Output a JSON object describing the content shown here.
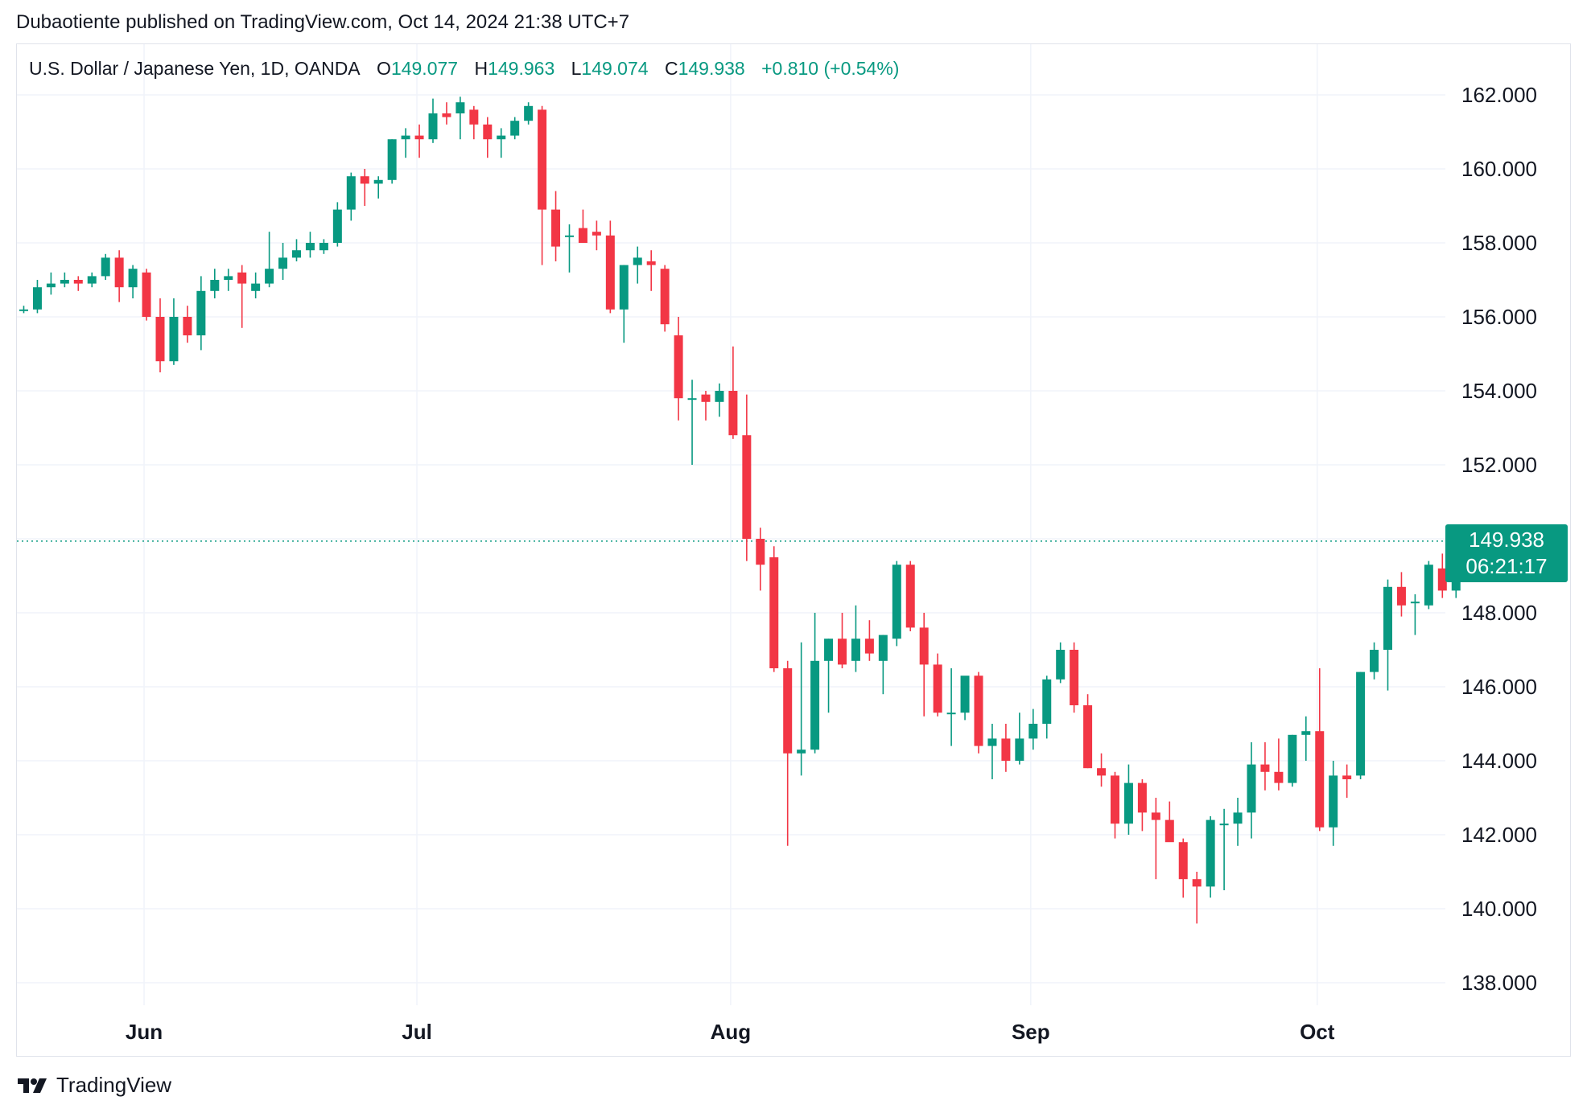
{
  "header": {
    "published": "Dubaotiente published on TradingView.com, Oct 14, 2024 21:38 UTC+7"
  },
  "legend": {
    "symbol": "U.S. Dollar / Japanese Yen, 1D, OANDA",
    "o_label": "O",
    "o_value": "149.077",
    "h_label": "H",
    "h_value": "149.963",
    "l_label": "L",
    "l_value": "149.074",
    "c_label": "C",
    "c_value": "149.938",
    "change": "+0.810 (+0.54%)"
  },
  "price_label": {
    "price": "149.938",
    "countdown": "06:21:17"
  },
  "footer": {
    "brand": "TradingView",
    "logo_icon": "tradingview-logo-icon"
  },
  "colors": {
    "up": "#089981",
    "down": "#f23645",
    "grid": "#f0f3fa",
    "text": "#131722"
  },
  "chart_data": {
    "type": "candlestick",
    "title": "U.S. Dollar / Japanese Yen, 1D, OANDA",
    "xlabel": "",
    "ylabel": "",
    "ylim": [
      137.0,
      163.5
    ],
    "y_ticks": [
      "138.000",
      "140.000",
      "142.000",
      "144.000",
      "146.000",
      "148.000",
      "150.000",
      "152.000",
      "154.000",
      "156.000",
      "158.000",
      "160.000",
      "162.000"
    ],
    "y_tick_values": [
      138,
      140,
      142,
      144,
      146,
      148,
      150,
      152,
      154,
      156,
      158,
      160,
      162
    ],
    "x_ticks": [
      {
        "label": "Jun",
        "index": 9
      },
      {
        "label": "Jul",
        "index": 29
      },
      {
        "label": "Aug",
        "index": 52
      },
      {
        "label": "Sep",
        "index": 74
      },
      {
        "label": "Oct",
        "index": 95
      }
    ],
    "last_price": 149.938,
    "grid": true,
    "candles": [
      {
        "o": 156.2,
        "h": 156.3,
        "l": 156.1,
        "c": 156.2
      },
      {
        "o": 156.2,
        "h": 157.0,
        "l": 156.1,
        "c": 156.8
      },
      {
        "o": 156.8,
        "h": 157.2,
        "l": 156.6,
        "c": 156.9
      },
      {
        "o": 156.9,
        "h": 157.2,
        "l": 156.8,
        "c": 157.0
      },
      {
        "o": 157.0,
        "h": 157.1,
        "l": 156.7,
        "c": 156.9
      },
      {
        "o": 156.9,
        "h": 157.2,
        "l": 156.8,
        "c": 157.1
      },
      {
        "o": 157.1,
        "h": 157.7,
        "l": 157.0,
        "c": 157.6
      },
      {
        "o": 157.6,
        "h": 157.8,
        "l": 156.4,
        "c": 156.8
      },
      {
        "o": 156.8,
        "h": 157.4,
        "l": 156.5,
        "c": 157.3
      },
      {
        "o": 157.2,
        "h": 157.3,
        "l": 155.9,
        "c": 156.0
      },
      {
        "o": 156.0,
        "h": 156.5,
        "l": 154.5,
        "c": 154.8
      },
      {
        "o": 154.8,
        "h": 156.5,
        "l": 154.7,
        "c": 156.0
      },
      {
        "o": 156.0,
        "h": 156.3,
        "l": 155.3,
        "c": 155.5
      },
      {
        "o": 155.5,
        "h": 157.1,
        "l": 155.1,
        "c": 156.7
      },
      {
        "o": 156.7,
        "h": 157.3,
        "l": 156.5,
        "c": 157.0
      },
      {
        "o": 157.0,
        "h": 157.3,
        "l": 156.7,
        "c": 157.1
      },
      {
        "o": 157.2,
        "h": 157.4,
        "l": 155.7,
        "c": 156.9
      },
      {
        "o": 156.7,
        "h": 157.2,
        "l": 156.5,
        "c": 156.9
      },
      {
        "o": 156.9,
        "h": 158.3,
        "l": 156.8,
        "c": 157.3
      },
      {
        "o": 157.3,
        "h": 158.0,
        "l": 157.0,
        "c": 157.6
      },
      {
        "o": 157.6,
        "h": 158.1,
        "l": 157.5,
        "c": 157.8
      },
      {
        "o": 157.8,
        "h": 158.3,
        "l": 157.6,
        "c": 158.0
      },
      {
        "o": 157.8,
        "h": 158.1,
        "l": 157.7,
        "c": 158.0
      },
      {
        "o": 158.0,
        "h": 159.1,
        "l": 157.9,
        "c": 158.9
      },
      {
        "o": 158.9,
        "h": 159.9,
        "l": 158.6,
        "c": 159.8
      },
      {
        "o": 159.8,
        "h": 160.0,
        "l": 159.0,
        "c": 159.6
      },
      {
        "o": 159.6,
        "h": 159.8,
        "l": 159.2,
        "c": 159.7
      },
      {
        "o": 159.7,
        "h": 160.8,
        "l": 159.6,
        "c": 160.8
      },
      {
        "o": 160.8,
        "h": 161.1,
        "l": 160.3,
        "c": 160.9
      },
      {
        "o": 160.9,
        "h": 161.2,
        "l": 160.3,
        "c": 160.8
      },
      {
        "o": 160.8,
        "h": 161.9,
        "l": 160.7,
        "c": 161.5
      },
      {
        "o": 161.5,
        "h": 161.8,
        "l": 161.2,
        "c": 161.4
      },
      {
        "o": 161.5,
        "h": 161.95,
        "l": 160.8,
        "c": 161.8
      },
      {
        "o": 161.6,
        "h": 161.7,
        "l": 160.8,
        "c": 161.2
      },
      {
        "o": 161.2,
        "h": 161.4,
        "l": 160.3,
        "c": 160.8
      },
      {
        "o": 160.8,
        "h": 161.1,
        "l": 160.3,
        "c": 160.9
      },
      {
        "o": 160.9,
        "h": 161.4,
        "l": 160.8,
        "c": 161.3
      },
      {
        "o": 161.3,
        "h": 161.8,
        "l": 161.2,
        "c": 161.7
      },
      {
        "o": 161.6,
        "h": 161.7,
        "l": 157.4,
        "c": 158.9
      },
      {
        "o": 158.9,
        "h": 159.4,
        "l": 157.5,
        "c": 157.9
      },
      {
        "o": 158.2,
        "h": 158.5,
        "l": 157.2,
        "c": 158.2
      },
      {
        "o": 158.4,
        "h": 158.9,
        "l": 158.0,
        "c": 158.0
      },
      {
        "o": 158.3,
        "h": 158.6,
        "l": 157.8,
        "c": 158.2
      },
      {
        "o": 158.2,
        "h": 158.6,
        "l": 156.1,
        "c": 156.2
      },
      {
        "o": 156.2,
        "h": 157.4,
        "l": 155.3,
        "c": 157.4
      },
      {
        "o": 157.4,
        "h": 157.9,
        "l": 156.9,
        "c": 157.6
      },
      {
        "o": 157.5,
        "h": 157.8,
        "l": 156.7,
        "c": 157.4
      },
      {
        "o": 157.3,
        "h": 157.4,
        "l": 155.6,
        "c": 155.8
      },
      {
        "o": 155.5,
        "h": 156.0,
        "l": 153.2,
        "c": 153.8
      },
      {
        "o": 153.8,
        "h": 154.3,
        "l": 152.0,
        "c": 153.8
      },
      {
        "o": 153.9,
        "h": 154.0,
        "l": 153.2,
        "c": 153.7
      },
      {
        "o": 153.7,
        "h": 154.2,
        "l": 153.3,
        "c": 154.0
      },
      {
        "o": 154.0,
        "h": 155.2,
        "l": 152.7,
        "c": 152.8
      },
      {
        "o": 152.8,
        "h": 153.9,
        "l": 149.4,
        "c": 150.0
      },
      {
        "o": 150.0,
        "h": 150.3,
        "l": 148.6,
        "c": 149.3
      },
      {
        "o": 149.5,
        "h": 149.8,
        "l": 146.4,
        "c": 146.5
      },
      {
        "o": 146.5,
        "h": 146.7,
        "l": 141.7,
        "c": 144.2
      },
      {
        "o": 144.2,
        "h": 147.2,
        "l": 143.6,
        "c": 144.3
      },
      {
        "o": 144.3,
        "h": 148.0,
        "l": 144.2,
        "c": 146.7
      },
      {
        "o": 146.7,
        "h": 147.3,
        "l": 145.3,
        "c": 147.3
      },
      {
        "o": 147.3,
        "h": 148.0,
        "l": 146.5,
        "c": 146.6
      },
      {
        "o": 146.7,
        "h": 148.2,
        "l": 146.4,
        "c": 147.3
      },
      {
        "o": 147.3,
        "h": 147.8,
        "l": 146.7,
        "c": 146.9
      },
      {
        "o": 146.7,
        "h": 147.4,
        "l": 145.8,
        "c": 147.4
      },
      {
        "o": 147.3,
        "h": 149.4,
        "l": 147.1,
        "c": 149.3
      },
      {
        "o": 149.3,
        "h": 149.4,
        "l": 147.5,
        "c": 147.6
      },
      {
        "o": 147.6,
        "h": 148.0,
        "l": 145.2,
        "c": 146.6
      },
      {
        "o": 146.6,
        "h": 146.9,
        "l": 145.2,
        "c": 145.3
      },
      {
        "o": 145.3,
        "h": 146.5,
        "l": 144.4,
        "c": 145.3
      },
      {
        "o": 145.3,
        "h": 146.2,
        "l": 145.1,
        "c": 146.3
      },
      {
        "o": 146.3,
        "h": 146.4,
        "l": 144.2,
        "c": 144.4
      },
      {
        "o": 144.4,
        "h": 145.0,
        "l": 143.5,
        "c": 144.6
      },
      {
        "o": 144.6,
        "h": 145.0,
        "l": 143.7,
        "c": 144.0
      },
      {
        "o": 144.0,
        "h": 145.3,
        "l": 143.9,
        "c": 144.6
      },
      {
        "o": 144.6,
        "h": 145.4,
        "l": 144.3,
        "c": 145.0
      },
      {
        "o": 145.0,
        "h": 146.3,
        "l": 144.6,
        "c": 146.2
      },
      {
        "o": 146.2,
        "h": 147.2,
        "l": 146.1,
        "c": 147.0
      },
      {
        "o": 147.0,
        "h": 147.2,
        "l": 145.3,
        "c": 145.5
      },
      {
        "o": 145.5,
        "h": 145.8,
        "l": 143.8,
        "c": 143.8
      },
      {
        "o": 143.8,
        "h": 144.2,
        "l": 143.3,
        "c": 143.6
      },
      {
        "o": 143.6,
        "h": 143.7,
        "l": 141.9,
        "c": 142.3
      },
      {
        "o": 142.3,
        "h": 143.9,
        "l": 142.0,
        "c": 143.4
      },
      {
        "o": 143.4,
        "h": 143.5,
        "l": 142.1,
        "c": 142.6
      },
      {
        "o": 142.6,
        "h": 143.0,
        "l": 140.8,
        "c": 142.4
      },
      {
        "o": 142.4,
        "h": 142.9,
        "l": 141.9,
        "c": 141.8
      },
      {
        "o": 141.8,
        "h": 141.9,
        "l": 140.3,
        "c": 140.8
      },
      {
        "o": 140.8,
        "h": 141.0,
        "l": 139.6,
        "c": 140.6
      },
      {
        "o": 140.6,
        "h": 142.5,
        "l": 140.3,
        "c": 142.4
      },
      {
        "o": 142.3,
        "h": 142.7,
        "l": 140.5,
        "c": 142.3
      },
      {
        "o": 142.3,
        "h": 143.0,
        "l": 141.7,
        "c": 142.6
      },
      {
        "o": 142.6,
        "h": 144.5,
        "l": 141.9,
        "c": 143.9
      },
      {
        "o": 143.9,
        "h": 144.5,
        "l": 143.2,
        "c": 143.7
      },
      {
        "o": 143.7,
        "h": 144.6,
        "l": 143.2,
        "c": 143.4
      },
      {
        "o": 143.4,
        "h": 144.7,
        "l": 143.3,
        "c": 144.7
      },
      {
        "o": 144.7,
        "h": 145.2,
        "l": 144.0,
        "c": 144.8
      },
      {
        "o": 144.8,
        "h": 146.5,
        "l": 142.1,
        "c": 142.2
      },
      {
        "o": 142.2,
        "h": 144.0,
        "l": 141.7,
        "c": 143.6
      },
      {
        "o": 143.6,
        "h": 143.9,
        "l": 143.0,
        "c": 143.5
      },
      {
        "o": 143.6,
        "h": 146.4,
        "l": 143.5,
        "c": 146.4
      },
      {
        "o": 146.4,
        "h": 147.2,
        "l": 146.2,
        "c": 147.0
      },
      {
        "o": 147.0,
        "h": 148.9,
        "l": 145.9,
        "c": 148.7
      },
      {
        "o": 148.7,
        "h": 149.1,
        "l": 147.9,
        "c": 148.2
      },
      {
        "o": 148.3,
        "h": 148.5,
        "l": 147.4,
        "c": 148.3
      },
      {
        "o": 148.2,
        "h": 149.4,
        "l": 148.1,
        "c": 149.3
      },
      {
        "o": 149.2,
        "h": 149.6,
        "l": 148.4,
        "c": 148.6
      },
      {
        "o": 148.6,
        "h": 149.3,
        "l": 148.4,
        "c": 149.1
      },
      {
        "o": 149.077,
        "h": 149.963,
        "l": 149.074,
        "c": 149.938
      }
    ]
  }
}
